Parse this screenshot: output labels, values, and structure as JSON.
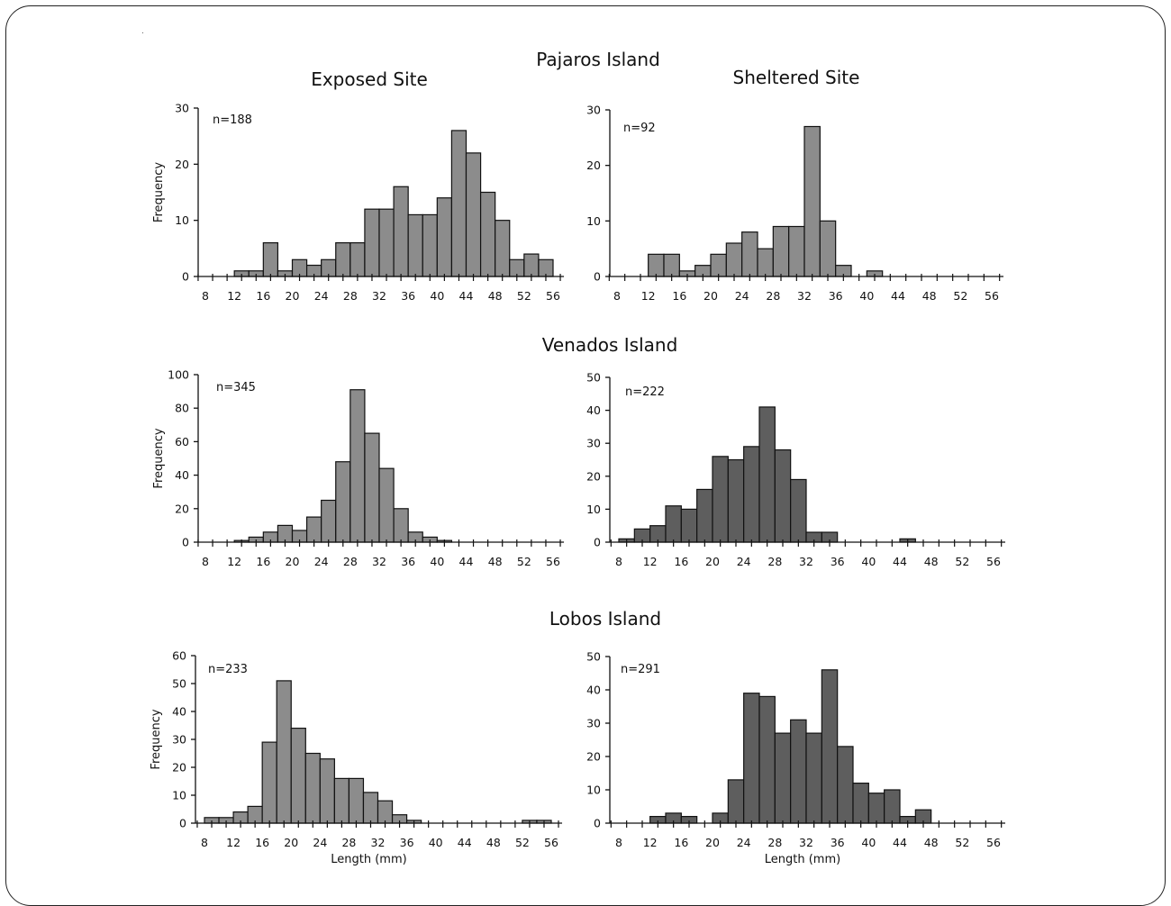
{
  "headers": {
    "pajaros": "Pajaros Island",
    "exposed": "Exposed Site",
    "sheltered": "Sheltered Site",
    "venados": "Venados Island",
    "lobos": "Lobos Island"
  },
  "colors": {
    "light_bar": "#8c8c8c",
    "dark_bar": "#5e5e5e",
    "axis": "#111111"
  },
  "chart_data": [
    {
      "type": "bar",
      "island": "Pajaros Island",
      "site": "Exposed Site",
      "n_label": "n=188",
      "ylabel": "Frequency",
      "xlabel": "",
      "ylim": [
        0,
        30
      ],
      "yticks": [
        0,
        10,
        20,
        30
      ],
      "xticks": [
        8,
        12,
        16,
        20,
        24,
        28,
        32,
        36,
        40,
        44,
        48,
        52,
        56
      ],
      "bin_width": 2,
      "bins": [
        [
          13,
          1
        ],
        [
          15,
          1
        ],
        [
          17,
          6
        ],
        [
          19,
          1
        ],
        [
          21,
          3
        ],
        [
          23,
          2
        ],
        [
          25,
          3
        ],
        [
          27,
          6
        ],
        [
          29,
          6
        ],
        [
          31,
          12
        ],
        [
          33,
          12
        ],
        [
          35,
          16
        ],
        [
          37,
          11
        ],
        [
          39,
          11
        ],
        [
          41,
          14
        ],
        [
          43,
          26
        ],
        [
          45,
          22
        ],
        [
          47,
          15
        ],
        [
          49,
          10
        ],
        [
          51,
          3
        ],
        [
          53,
          4
        ],
        [
          55,
          3
        ]
      ]
    },
    {
      "type": "bar",
      "island": "Pajaros Island",
      "site": "Sheltered Site",
      "n_label": "n=92",
      "ylabel": "",
      "xlabel": "",
      "ylim": [
        0,
        30
      ],
      "yticks": [
        0,
        10,
        20,
        30
      ],
      "xticks": [
        8,
        12,
        16,
        20,
        24,
        28,
        32,
        36,
        40,
        44,
        48,
        52,
        56
      ],
      "bin_width": 2,
      "bins": [
        [
          13,
          4
        ],
        [
          15,
          4
        ],
        [
          17,
          1
        ],
        [
          19,
          2
        ],
        [
          21,
          4
        ],
        [
          23,
          6
        ],
        [
          25,
          8
        ],
        [
          27,
          5
        ],
        [
          29,
          9
        ],
        [
          31,
          9
        ],
        [
          33,
          27
        ],
        [
          35,
          10
        ],
        [
          37,
          2
        ],
        [
          41,
          1
        ]
      ]
    },
    {
      "type": "bar",
      "island": "Venados Island",
      "site": "Exposed Site",
      "n_label": "n=345",
      "ylabel": "Frequency",
      "xlabel": "",
      "ylim": [
        0,
        100
      ],
      "yticks": [
        0,
        20,
        40,
        60,
        80,
        100
      ],
      "xticks": [
        8,
        12,
        16,
        20,
        24,
        28,
        32,
        36,
        40,
        44,
        48,
        52,
        56
      ],
      "bin_width": 2,
      "bins": [
        [
          13,
          1
        ],
        [
          15,
          3
        ],
        [
          17,
          6
        ],
        [
          19,
          10
        ],
        [
          21,
          7
        ],
        [
          23,
          15
        ],
        [
          25,
          25
        ],
        [
          27,
          48
        ],
        [
          29,
          91
        ],
        [
          31,
          65
        ],
        [
          33,
          44
        ],
        [
          35,
          20
        ],
        [
          37,
          6
        ],
        [
          39,
          3
        ],
        [
          41,
          1
        ]
      ]
    },
    {
      "type": "bar",
      "island": "Venados Island",
      "site": "Sheltered Site",
      "n_label": "n=222",
      "ylabel": "",
      "xlabel": "",
      "ylim": [
        0,
        50
      ],
      "yticks": [
        0,
        10,
        20,
        30,
        40,
        50
      ],
      "xticks": [
        8,
        12,
        16,
        20,
        24,
        28,
        32,
        36,
        40,
        44,
        48,
        52,
        56
      ],
      "bin_width": 2,
      "bins": [
        [
          9,
          1
        ],
        [
          11,
          4
        ],
        [
          13,
          5
        ],
        [
          15,
          11
        ],
        [
          17,
          10
        ],
        [
          19,
          16
        ],
        [
          21,
          26
        ],
        [
          23,
          25
        ],
        [
          25,
          29
        ],
        [
          27,
          41
        ],
        [
          29,
          28
        ],
        [
          31,
          19
        ],
        [
          33,
          3
        ],
        [
          35,
          3
        ],
        [
          45,
          1
        ]
      ]
    },
    {
      "type": "bar",
      "island": "Lobos Island",
      "site": "Exposed Site",
      "n_label": "n=233",
      "ylabel": "Frequency",
      "xlabel": "Length (mm)",
      "ylim": [
        0,
        60
      ],
      "yticks": [
        0,
        10,
        20,
        30,
        40,
        50,
        60
      ],
      "xticks": [
        8,
        12,
        16,
        20,
        24,
        28,
        32,
        36,
        40,
        44,
        48,
        52,
        56
      ],
      "bin_width": 2,
      "bins": [
        [
          9,
          2
        ],
        [
          11,
          2
        ],
        [
          13,
          4
        ],
        [
          15,
          6
        ],
        [
          17,
          29
        ],
        [
          19,
          51
        ],
        [
          21,
          34
        ],
        [
          23,
          25
        ],
        [
          25,
          23
        ],
        [
          27,
          16
        ],
        [
          29,
          16
        ],
        [
          31,
          11
        ],
        [
          33,
          8
        ],
        [
          35,
          3
        ],
        [
          37,
          1
        ],
        [
          53,
          1
        ],
        [
          55,
          1
        ]
      ]
    },
    {
      "type": "bar",
      "island": "Lobos Island",
      "site": "Sheltered Site",
      "n_label": "n=291",
      "ylabel": "",
      "xlabel": "Length (mm)",
      "ylim": [
        0,
        50
      ],
      "yticks": [
        0,
        10,
        20,
        30,
        40,
        50
      ],
      "xticks": [
        8,
        12,
        16,
        20,
        24,
        28,
        32,
        36,
        40,
        44,
        48,
        52,
        56
      ],
      "bin_width": 2,
      "bins": [
        [
          13,
          2
        ],
        [
          15,
          3
        ],
        [
          17,
          2
        ],
        [
          21,
          3
        ],
        [
          23,
          13
        ],
        [
          25,
          39
        ],
        [
          27,
          38
        ],
        [
          29,
          27
        ],
        [
          31,
          31
        ],
        [
          33,
          27
        ],
        [
          35,
          46
        ],
        [
          37,
          23
        ],
        [
          39,
          12
        ],
        [
          41,
          9
        ],
        [
          43,
          10
        ],
        [
          45,
          2
        ],
        [
          47,
          4
        ]
      ]
    }
  ]
}
